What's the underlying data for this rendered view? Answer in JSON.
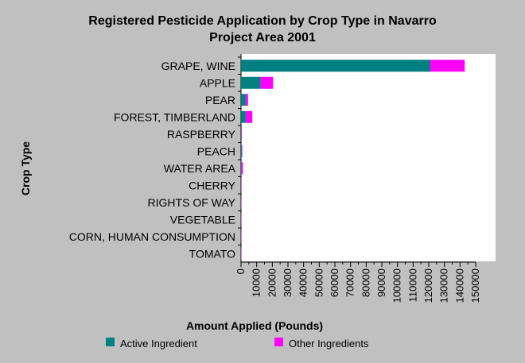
{
  "chart_data": {
    "type": "bar",
    "orientation": "horizontal",
    "stacked": true,
    "title": [
      "Registered Pesticide Application by Crop Type in Navarro",
      "Project Area 2001"
    ],
    "xlabel": "Amount Applied (Pounds)",
    "ylabel": "Crop Type",
    "xlim": [
      0,
      150000
    ],
    "x_ticks": [
      "0",
      "10000",
      "20000",
      "30000",
      "40000",
      "50000",
      "60000",
      "70000",
      "80000",
      "90000",
      "100000",
      "110000",
      "120000",
      "130000",
      "140000",
      "150000"
    ],
    "categories": [
      "GRAPE, WINE",
      "APPLE",
      "PEAR",
      "FOREST, TIMBERLAND",
      "RASPBERRY",
      "PEACH",
      "WATER AREA",
      "CHERRY",
      "RIGHTS OF WAY",
      "VEGETABLE",
      "CORN, HUMAN CONSUMPTION",
      "TOMATO"
    ],
    "series": [
      {
        "name": "Active Ingredient",
        "color": "#008080",
        "values": [
          121000,
          12500,
          3000,
          3000,
          300,
          500,
          300,
          100,
          50,
          50,
          50,
          50
        ]
      },
      {
        "name": "Other Ingredients",
        "color": "#ff00ff",
        "values": [
          22000,
          8000,
          1500,
          4200,
          200,
          300,
          900,
          100,
          50,
          50,
          50,
          50
        ]
      }
    ],
    "grid": false,
    "legend_position": "bottom"
  }
}
